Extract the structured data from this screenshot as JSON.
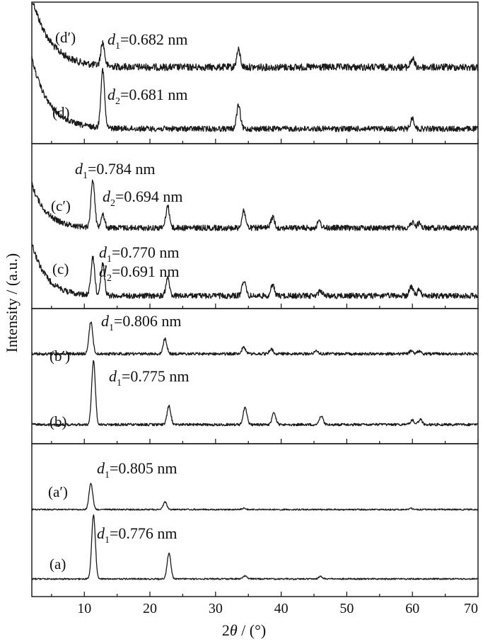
{
  "chart_data": {
    "type": "line",
    "xlabel": "2θ / (°)",
    "ylabel": "Intensity / (a.u.)",
    "xlim": [
      2,
      70
    ],
    "x_ticks": [
      10,
      20,
      30,
      40,
      50,
      60,
      70
    ],
    "panels": [
      {
        "id": "d",
        "series": [
          {
            "name": "(d′)",
            "annotation": "d1=0.682 nm",
            "ann_sub": "1",
            "ann_value": "=0.682 nm",
            "background": "decay_high",
            "peaks": [
              [
                12.8,
                0.22
              ],
              [
                33.5,
                0.16
              ],
              [
                60.0,
                0.08
              ]
            ]
          },
          {
            "name": "(d)",
            "annotation": "d2=0.681 nm",
            "ann_sub": "2",
            "ann_value": "=0.681 nm",
            "background": "decay_high",
            "peaks": [
              [
                12.8,
                0.55
              ],
              [
                33.5,
                0.22
              ],
              [
                60.0,
                0.1
              ]
            ]
          }
        ]
      },
      {
        "id": "c",
        "series": [
          {
            "name": "(c′)",
            "annotations": [
              {
                "sub": "1",
                "value": "=0.784 nm"
              },
              {
                "sub": "2",
                "value": "=0.694 nm"
              }
            ],
            "background": "decay_mid",
            "peaks": [
              [
                11.3,
                0.62
              ],
              [
                12.8,
                0.18
              ],
              [
                22.7,
                0.28
              ],
              [
                34.3,
                0.22
              ],
              [
                38.7,
                0.14
              ],
              [
                45.8,
                0.08
              ],
              [
                60.0,
                0.07
              ],
              [
                61.0,
                0.06
              ]
            ]
          },
          {
            "name": "(c)",
            "annotations": [
              {
                "sub": "1",
                "value": "=0.770 nm"
              },
              {
                "sub": "2",
                "value": "=0.691 nm"
              }
            ],
            "background": "decay_mid",
            "peaks": [
              [
                11.3,
                0.48
              ],
              [
                12.8,
                0.4
              ],
              [
                22.7,
                0.22
              ],
              [
                34.3,
                0.2
              ],
              [
                38.7,
                0.13
              ],
              [
                46.0,
                0.07
              ],
              [
                59.8,
                0.12
              ],
              [
                61.0,
                0.07
              ]
            ]
          }
        ]
      },
      {
        "id": "b",
        "series": [
          {
            "name": "(b′)",
            "annotation": "d1=0.806 nm",
            "ann_sub": "1",
            "ann_value": "=0.806 nm",
            "background": "flat",
            "peaks": [
              [
                11.0,
                0.95
              ],
              [
                22.3,
                0.45
              ],
              [
                34.3,
                0.2
              ],
              [
                38.5,
                0.14
              ],
              [
                45.3,
                0.1
              ],
              [
                59.8,
                0.09
              ],
              [
                61.0,
                0.07
              ]
            ]
          },
          {
            "name": "(b)",
            "annotation": "d1=0.775 nm",
            "ann_sub": "1",
            "ann_value": "=0.775 nm",
            "background": "flat",
            "peaks": [
              [
                11.4,
                1.0
              ],
              [
                22.9,
                0.3
              ],
              [
                34.5,
                0.28
              ],
              [
                38.9,
                0.18
              ],
              [
                46.1,
                0.14
              ],
              [
                60.0,
                0.07
              ],
              [
                61.2,
                0.08
              ]
            ]
          }
        ]
      },
      {
        "id": "a",
        "series": [
          {
            "name": "(a′)",
            "annotation": "d1=0.805 nm",
            "ann_sub": "1",
            "ann_value": "=0.805 nm",
            "background": "flat",
            "peaks": [
              [
                11.0,
                1.0
              ],
              [
                22.3,
                0.28
              ],
              [
                34.3,
                0.05
              ],
              [
                59.8,
                0.04
              ]
            ]
          },
          {
            "name": "(a)",
            "annotation": "d1=0.776 nm",
            "ann_sub": "1",
            "ann_value": "=0.776 nm",
            "background": "flat",
            "peaks": [
              [
                11.4,
                1.0
              ],
              [
                22.9,
                0.4
              ],
              [
                34.5,
                0.05
              ],
              [
                46.0,
                0.04
              ]
            ]
          }
        ]
      }
    ]
  },
  "labels": {
    "d_prime": "(d′)",
    "d": "(d)",
    "c_prime": "(c′)",
    "c": "(c)",
    "b_prime": "(b′)",
    "b": "(b)",
    "a_prime": "(a′)",
    "a": "(a)",
    "d_letter": "d",
    "ann_dp_sub": "1",
    "ann_dp_val": "=0.682 nm",
    "ann_d_sub": "2",
    "ann_d_val": "=0.681 nm",
    "ann_cp1_sub": "1",
    "ann_cp1_val": "=0.784 nm",
    "ann_cp2_sub": "2",
    "ann_cp2_val": "=0.694 nm",
    "ann_c1_sub": "1",
    "ann_c1_val": "=0.770 nm",
    "ann_c2_sub": "2",
    "ann_c2_val": "=0.691 nm",
    "ann_bp_sub": "1",
    "ann_bp_val": "=0.806 nm",
    "ann_b_sub": "1",
    "ann_b_val": "=0.775 nm",
    "ann_ap_sub": "1",
    "ann_ap_val": "=0.805 nm",
    "ann_a_sub": "1",
    "ann_a_val": "=0.776 nm"
  }
}
